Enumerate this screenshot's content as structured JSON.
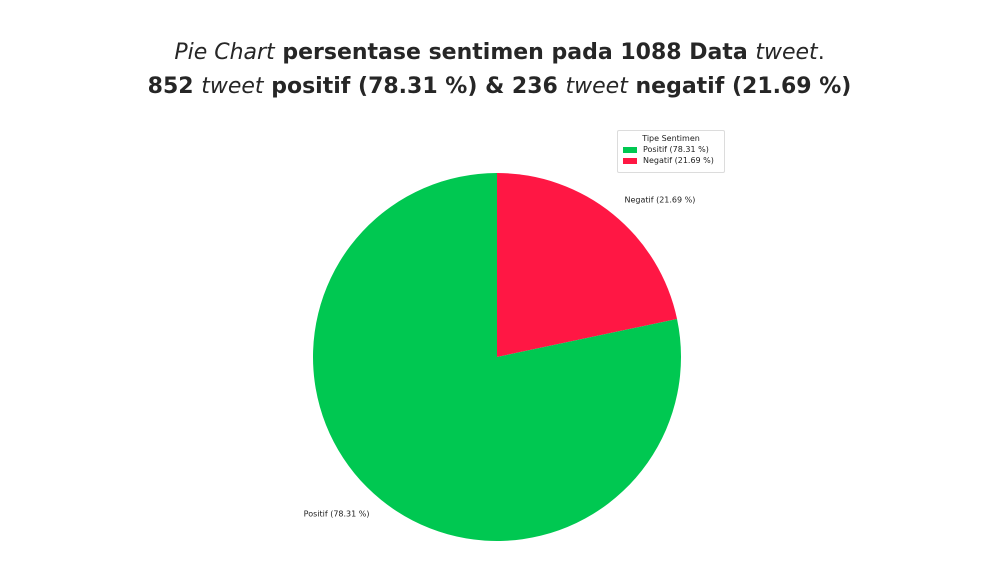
{
  "title": {
    "line1": {
      "italic_pie_chart": "Pie Chart",
      "text_a": " persentase sentimen pada 1088 Data ",
      "italic_tweet": "tweet",
      "text_b": "."
    },
    "line2": {
      "count_pos": "852 ",
      "italic_tweet_1": "tweet",
      "text_pos": " positif (78.31 %) & 236 ",
      "italic_tweet_2": "tweet",
      "text_neg": " negatif (21.69 %)"
    }
  },
  "chart_data": {
    "type": "pie",
    "slices": [
      {
        "name": "Positif",
        "label": "Positif (78.31 %)",
        "value": 78.31,
        "count": 852,
        "color": "#00c851"
      },
      {
        "name": "Negatif",
        "label": "Negatif (21.69 %)",
        "value": 21.69,
        "count": 236,
        "color": "#ff1744"
      }
    ],
    "legend": {
      "title": "Tipe Sentimen",
      "placement": "top-right",
      "entries": [
        "Positif (78.31 %)",
        "Negatif (21.69 %)"
      ]
    },
    "start_angle": 90,
    "direction": "clockwise-negatif-first"
  }
}
